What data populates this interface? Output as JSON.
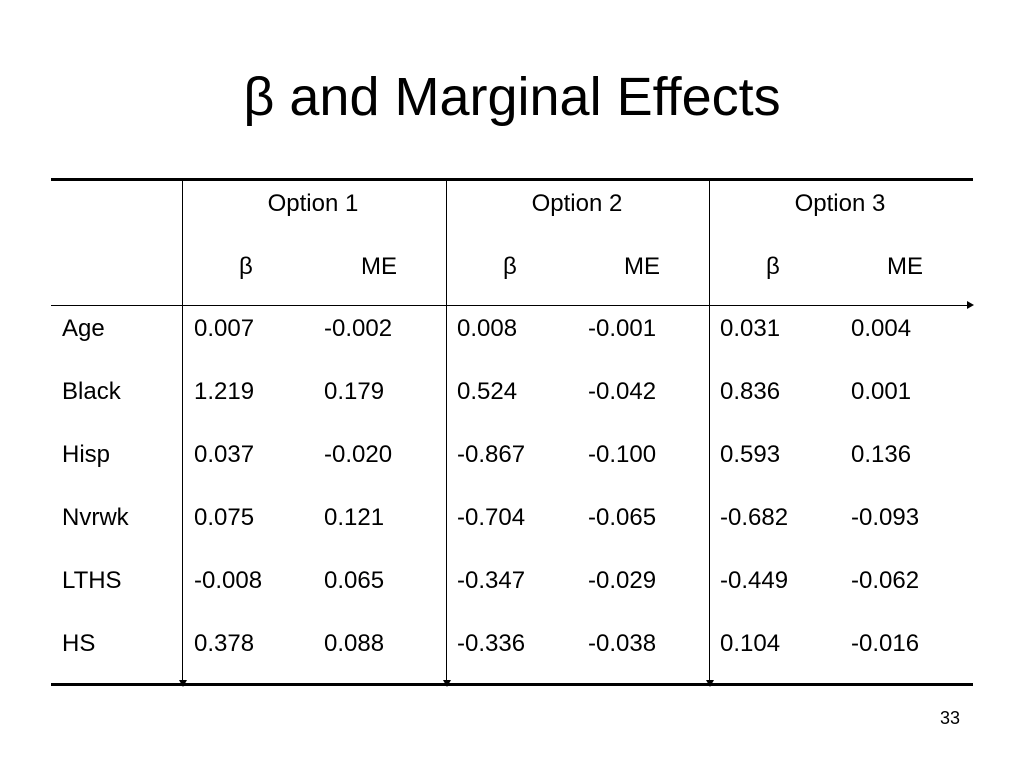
{
  "title": "β and Marginal Effects",
  "table": {
    "options": [
      "Option 1",
      "Option 2",
      "Option 3"
    ],
    "subheaders": [
      "β",
      "ME",
      "β",
      "ME",
      "β",
      "ME"
    ],
    "rows": [
      {
        "label": "Age",
        "values": [
          "0.007",
          "-0.002",
          "0.008",
          "-0.001",
          "0.031",
          "0.004"
        ]
      },
      {
        "label": "Black",
        "values": [
          "1.219",
          "0.179",
          "0.524",
          "-0.042",
          "0.836",
          "0.001"
        ]
      },
      {
        "label": "Hisp",
        "values": [
          "0.037",
          "-0.020",
          "-0.867",
          "-0.100",
          "0.593",
          "0.136"
        ]
      },
      {
        "label": "Nvrwk",
        "values": [
          "0.075",
          "0.121",
          "-0.704",
          "-0.065",
          "-0.682",
          "-0.093"
        ]
      },
      {
        "label": "LTHS",
        "values": [
          "-0.008",
          "0.065",
          "-0.347",
          "-0.029",
          "-0.449",
          "-0.062"
        ]
      },
      {
        "label": "HS",
        "values": [
          "0.378",
          "0.088",
          "-0.336",
          "-0.038",
          "0.104",
          "-0.016"
        ]
      }
    ]
  },
  "page_number": "33"
}
